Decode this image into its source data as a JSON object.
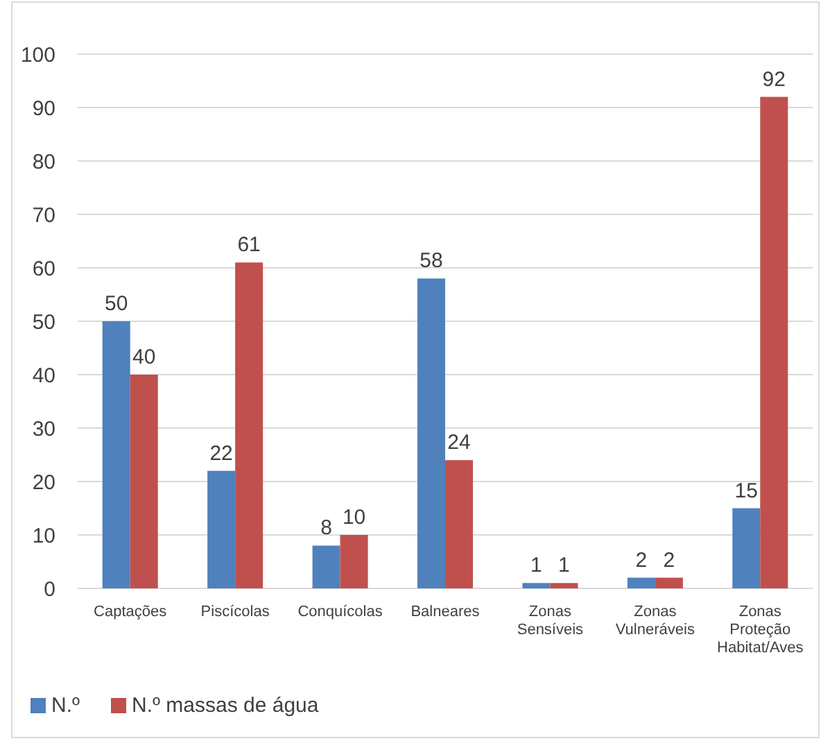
{
  "chart_data": {
    "type": "bar",
    "categories": [
      "Captações",
      "Piscícolas",
      "Conquícolas",
      "Balneares",
      "Zonas Sensíveis",
      "Zonas Vulneráveis",
      "Zonas Proteção Habitat/Aves"
    ],
    "series": [
      {
        "name": "N.º",
        "color": "#4f81bd",
        "values": [
          50,
          22,
          8,
          58,
          1,
          2,
          15
        ]
      },
      {
        "name": "N.º massas de água",
        "color": "#c0504d",
        "values": [
          40,
          61,
          10,
          24,
          1,
          2,
          92
        ]
      }
    ],
    "ylim": [
      0,
      100
    ],
    "yticks": [
      0,
      10,
      20,
      30,
      40,
      50,
      60,
      70,
      80,
      90,
      100
    ],
    "grid": "y",
    "legend": "bottom",
    "data_labels": true
  }
}
